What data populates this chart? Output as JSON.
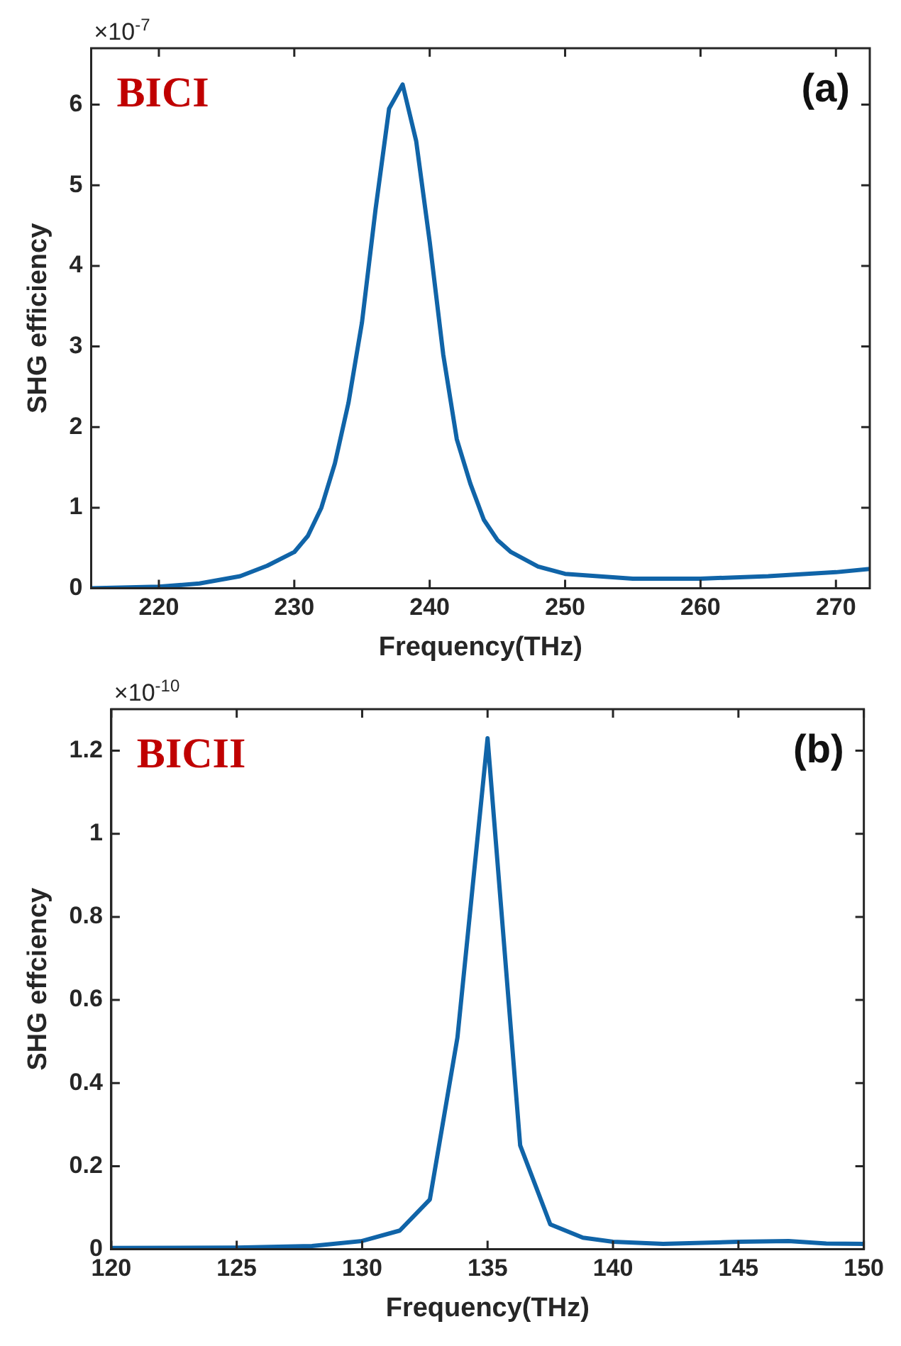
{
  "chart_data": [
    {
      "type": "line",
      "xlabel": "Frequency(THz)",
      "ylabel": "SHG efficiency",
      "annotations": [
        "BICI",
        "(a)",
        "×10$^{-7}$"
      ],
      "xlim": [
        215,
        272.5
      ],
      "ylim": [
        0,
        6.7
      ],
      "xticks": [
        220,
        230,
        240,
        250,
        260,
        270
      ],
      "yticks": [
        0,
        1,
        2,
        3,
        4,
        5,
        6
      ],
      "marker": "none",
      "line_style": "solid",
      "series": [
        {
          "color": "#1064a8",
          "x": [
            215,
            220,
            223,
            226,
            228,
            230,
            231,
            232,
            233,
            234,
            235,
            236,
            237,
            238,
            239,
            240,
            241,
            242,
            243,
            244,
            245,
            246,
            248,
            250,
            255,
            260,
            265,
            270,
            272.5
          ],
          "values": [
            0,
            0.02,
            0.06,
            0.15,
            0.28,
            0.45,
            0.65,
            1.0,
            1.55,
            2.3,
            3.3,
            4.7,
            5.95,
            6.25,
            5.55,
            4.3,
            2.9,
            1.85,
            1.3,
            0.85,
            0.6,
            0.45,
            0.27,
            0.18,
            0.12,
            0.12,
            0.15,
            0.2,
            0.24
          ]
        }
      ]
    },
    {
      "type": "line",
      "xlabel": "Frequency(THz)",
      "ylabel": "SHG effciency",
      "annotations": [
        "BICII",
        "(b)",
        "×10$^{-10}$"
      ],
      "xlim": [
        120,
        150
      ],
      "ylim": [
        0,
        1.3
      ],
      "xticks": [
        120,
        125,
        130,
        135,
        140,
        145,
        150
      ],
      "yticks": [
        0,
        0.2,
        0.4,
        0.6,
        0.8,
        1,
        1.2
      ],
      "marker": "none",
      "line_style": "solid",
      "series": [
        {
          "color": "#1064a8",
          "x": [
            120,
            125,
            128,
            130,
            131.5,
            132.7,
            133.8,
            135,
            136.3,
            137.5,
            138.8,
            140,
            142,
            145,
            147,
            148.5,
            150
          ],
          "values": [
            0.003,
            0.004,
            0.008,
            0.02,
            0.045,
            0.12,
            0.51,
            1.23,
            0.25,
            0.06,
            0.028,
            0.018,
            0.013,
            0.018,
            0.02,
            0.014,
            0.013
          ]
        }
      ]
    }
  ]
}
